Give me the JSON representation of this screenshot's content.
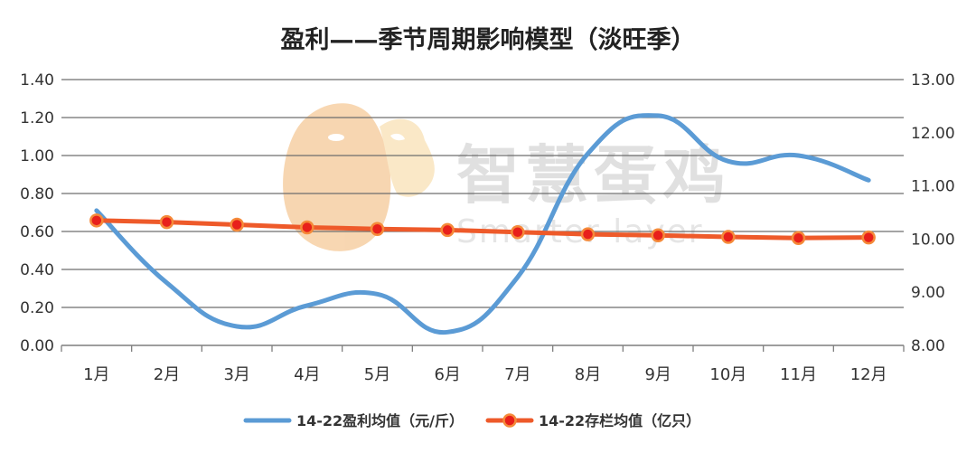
{
  "chart_data": {
    "type": "line",
    "title": "盈利——季节周期影响模型（淡旺季）",
    "categories": [
      "1月",
      "2月",
      "3月",
      "4月",
      "5月",
      "6月",
      "7月",
      "8月",
      "9月",
      "10月",
      "11月",
      "12月"
    ],
    "y_left": {
      "ylim": [
        0,
        1.4
      ],
      "ticks": [
        "0.00",
        "0.20",
        "0.40",
        "0.60",
        "0.80",
        "1.00",
        "1.20",
        "1.40"
      ]
    },
    "y_right": {
      "ylim": [
        8,
        13
      ],
      "ticks": [
        "8.00",
        "9.00",
        "10.00",
        "11.00",
        "12.00",
        "13.00"
      ]
    },
    "grid": "horizontal",
    "legend_position": "bottom",
    "series": [
      {
        "name": "14-22盈利均值（元/斤）",
        "axis": "left",
        "color": "#5B9BD5",
        "smooth": true,
        "markers": false,
        "values": [
          0.71,
          0.33,
          0.1,
          0.21,
          0.27,
          0.07,
          0.36,
          1.01,
          1.21,
          0.97,
          1.0,
          0.87
        ]
      },
      {
        "name": "14-22存栏均值（亿只）",
        "axis": "right",
        "color": "#EE5A2A",
        "marker_color": "#E8201B",
        "smooth": false,
        "markers": true,
        "values": [
          10.35,
          10.32,
          10.27,
          10.22,
          10.19,
          10.17,
          10.13,
          10.09,
          10.07,
          10.04,
          10.02,
          10.03
        ]
      }
    ]
  },
  "watermark": {
    "brand": "智慧蛋鸡",
    "sub": "Smarter layer"
  }
}
